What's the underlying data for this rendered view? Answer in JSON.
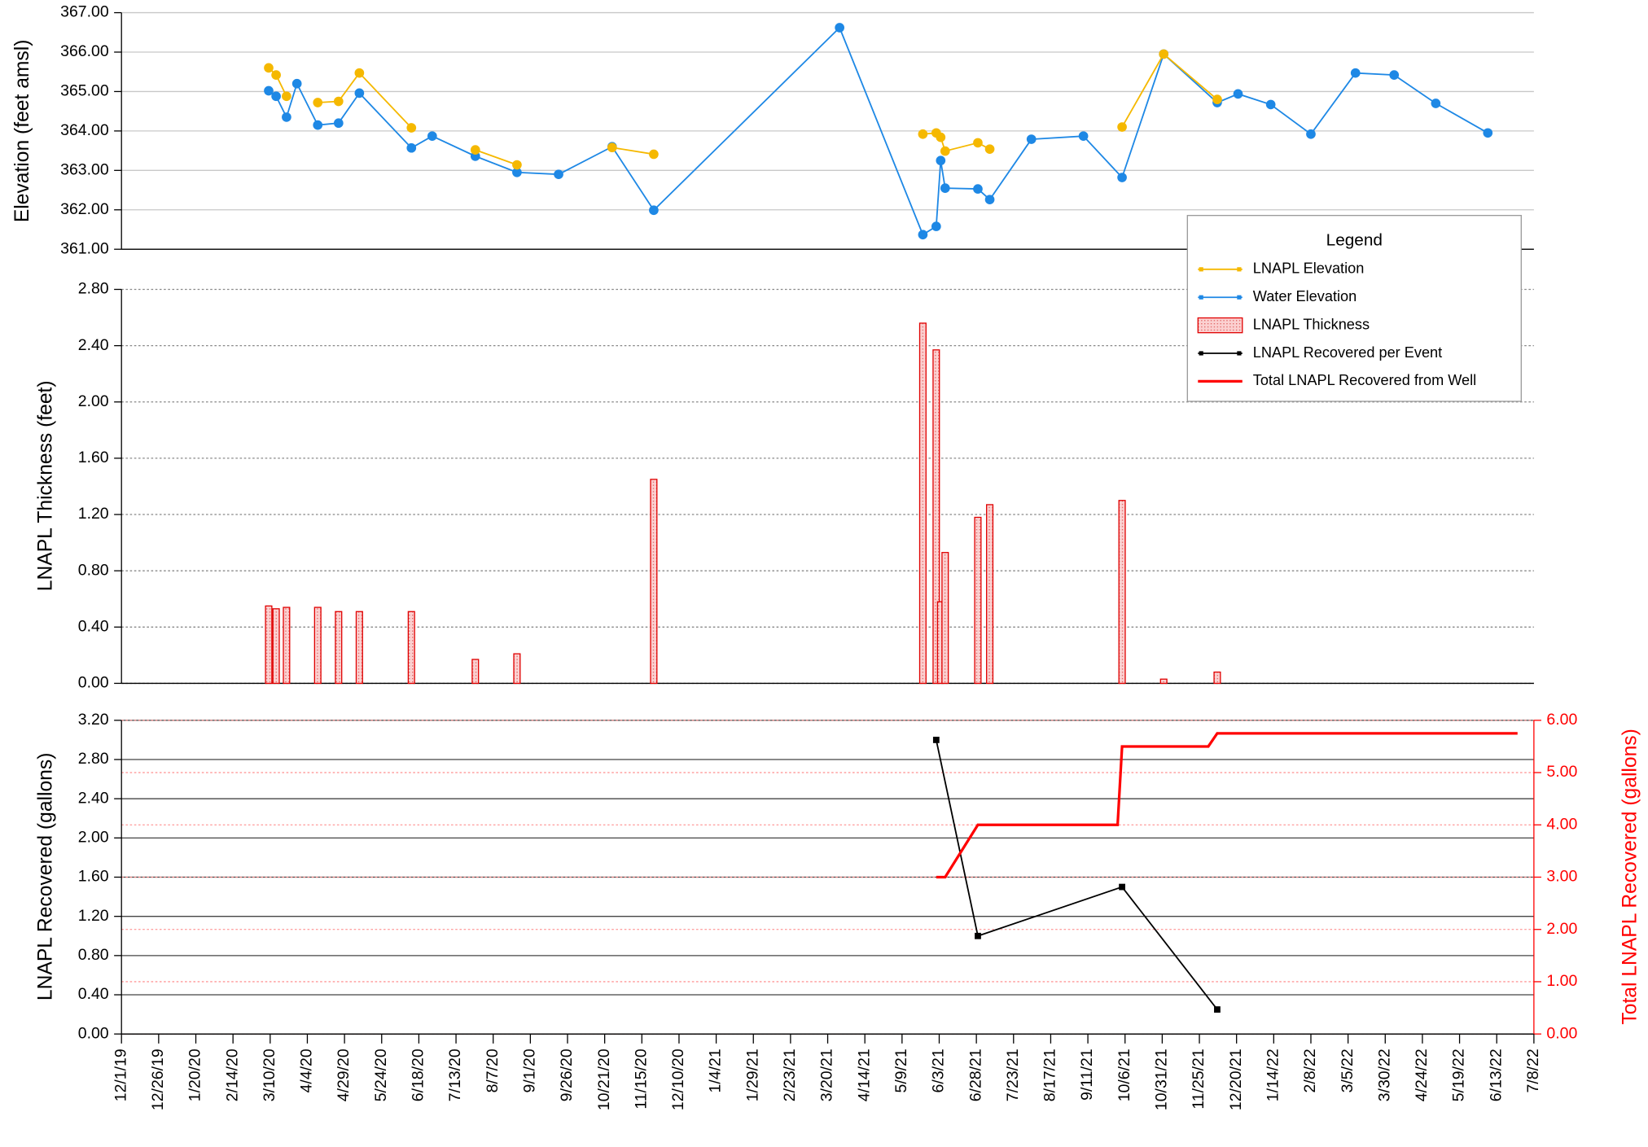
{
  "chart_data": [
    {
      "type": "line",
      "y_label": "Elevation (feet amsl)",
      "legend_title": "Legend",
      "legend": "upper right",
      "xlim": [
        "12/1/19",
        "7/8/22"
      ],
      "ylim": [
        361,
        367
      ],
      "yticks": [
        {
          "value": 361,
          "label": "361.00"
        },
        {
          "value": 362,
          "label": "362.00"
        },
        {
          "value": 363,
          "label": "363.00"
        },
        {
          "value": 364,
          "label": "364.00"
        },
        {
          "value": 365,
          "label": "365.00"
        },
        {
          "value": 366,
          "label": "366.00"
        },
        {
          "value": 367,
          "label": "367.00"
        }
      ],
      "grid": true,
      "grid_style": "solid",
      "x": [
        "3/9/20",
        "3/14/20",
        "3/21/20",
        "3/28/20",
        "4/11/20",
        "4/25/20",
        "5/9/20",
        "6/13/20",
        "6/27/20",
        "7/26/20",
        "8/23/20",
        "9/20/20",
        "10/26/20",
        "11/23/20",
        "3/28/21",
        "5/23/21",
        "6/1/21",
        "6/4/21",
        "6/7/21",
        "6/29/21",
        "7/7/21",
        "8/4/21",
        "9/8/21",
        "10/4/21",
        "11/1/21",
        "12/7/21",
        "12/21/21",
        "1/12/22",
        "2/8/22",
        "3/10/22",
        "4/5/22",
        "5/3/22",
        "6/7/22"
      ],
      "series": [
        {
          "name": "LNAPL Elevation",
          "color": "#f5b800",
          "values": [
            365.6,
            365.42,
            364.88,
            null,
            364.72,
            364.75,
            365.47,
            364.08,
            null,
            363.52,
            363.14,
            null,
            363.58,
            363.41,
            null,
            363.92,
            363.95,
            363.84,
            363.49,
            363.7,
            363.54,
            null,
            null,
            364.1,
            365.95,
            364.8,
            null,
            null,
            null,
            null,
            null,
            null,
            null
          ]
        },
        {
          "name": "Water Elevation",
          "color": "#1e88e5",
          "values": [
            365.02,
            364.88,
            364.35,
            365.2,
            364.15,
            364.2,
            364.96,
            363.57,
            363.87,
            363.36,
            362.95,
            362.9,
            363.6,
            361.99,
            366.62,
            361.37,
            361.58,
            363.25,
            362.55,
            362.53,
            362.26,
            363.79,
            363.87,
            362.82,
            365.95,
            364.72,
            364.94,
            364.67,
            363.92,
            365.47,
            365.42,
            364.7,
            363.95
          ]
        }
      ]
    },
    {
      "type": "bar",
      "y_label": "LNAPL Thickness (feet)",
      "xlim": [
        "12/1/19",
        "7/8/22"
      ],
      "ylim": [
        0,
        2.8
      ],
      "yticks": [
        {
          "value": 0,
          "label": "0.00"
        },
        {
          "value": 0.4,
          "label": "0.40"
        },
        {
          "value": 0.8,
          "label": "0.80"
        },
        {
          "value": 1.2,
          "label": "1.20"
        },
        {
          "value": 1.6,
          "label": "1.60"
        },
        {
          "value": 2,
          "label": "2.00"
        },
        {
          "value": 2.4,
          "label": "2.40"
        },
        {
          "value": 2.8,
          "label": "2.80"
        }
      ],
      "grid": true,
      "grid_style": "dotted",
      "x": [
        "3/9/20",
        "3/14/20",
        "3/21/20",
        "4/11/20",
        "4/25/20",
        "5/9/20",
        "6/13/20",
        "7/26/20",
        "8/23/20",
        "11/23/20",
        "5/23/21",
        "6/1/21",
        "6/4/21",
        "6/7/21",
        "6/29/21",
        "7/7/21",
        "10/4/21",
        "11/1/21",
        "12/7/21"
      ],
      "series": [
        {
          "name": "LNAPL Thickness",
          "color": "#e00000",
          "values": [
            0.55,
            0.53,
            0.54,
            0.54,
            0.51,
            0.51,
            0.51,
            0.17,
            0.21,
            1.45,
            2.56,
            2.37,
            0.58,
            0.93,
            1.18,
            1.27,
            1.3,
            0.03,
            0.08
          ]
        }
      ]
    },
    {
      "type": "line",
      "y_label": "LNAPL Recovered (gallons)",
      "y2_label": "Total LNAPL Recovered (gallons)",
      "xlim": [
        "12/1/19",
        "7/8/22"
      ],
      "ylim": [
        0,
        3.2
      ],
      "y2lim": [
        0,
        6
      ],
      "yticks": [
        {
          "value": 0,
          "label": "0.00"
        },
        {
          "value": 0.4,
          "label": "0.40"
        },
        {
          "value": 0.8,
          "label": "0.80"
        },
        {
          "value": 1.2,
          "label": "1.20"
        },
        {
          "value": 1.6,
          "label": "1.60"
        },
        {
          "value": 2,
          "label": "2.00"
        },
        {
          "value": 2.4,
          "label": "2.40"
        },
        {
          "value": 2.8,
          "label": "2.80"
        },
        {
          "value": 3.2,
          "label": "3.20"
        }
      ],
      "y2ticks": [
        {
          "value": 0,
          "label": "0.00"
        },
        {
          "value": 1,
          "label": "1.00"
        },
        {
          "value": 2,
          "label": "2.00"
        },
        {
          "value": 3,
          "label": "3.00"
        },
        {
          "value": 4,
          "label": "4.00"
        },
        {
          "value": 5,
          "label": "5.00"
        },
        {
          "value": 6,
          "label": "6.00"
        }
      ],
      "grid": true,
      "grid_style": "solid",
      "xticks": [
        "12/1/19",
        "12/26/19",
        "1/20/20",
        "2/14/20",
        "3/10/20",
        "4/4/20",
        "4/29/20",
        "5/24/20",
        "6/18/20",
        "7/13/20",
        "8/7/20",
        "9/1/20",
        "9/26/20",
        "10/21/20",
        "11/15/20",
        "12/10/20",
        "1/4/21",
        "1/29/21",
        "2/23/21",
        "3/20/21",
        "4/14/21",
        "5/9/21",
        "6/3/21",
        "6/28/21",
        "7/23/21",
        "8/17/21",
        "9/11/21",
        "10/6/21",
        "10/31/21",
        "11/25/21",
        "12/20/21",
        "1/14/22",
        "2/8/22",
        "3/5/22",
        "3/30/22",
        "4/24/22",
        "5/19/22",
        "6/13/22",
        "7/8/22"
      ],
      "series": [
        {
          "name": "LNAPL Recovered per Event",
          "color": "#000000",
          "x": [
            "6/1/21",
            "6/29/21",
            "10/4/21",
            "12/7/21"
          ],
          "values": [
            3.0,
            1.0,
            1.5,
            0.25
          ]
        },
        {
          "name": "Total LNAPL Recovered from Well",
          "color": "#ff0000",
          "axis": "y2",
          "x": [
            "6/1/21",
            "6/7/21",
            "6/29/21",
            "10/1/21",
            "10/4/21",
            "12/1/21",
            "12/7/21",
            "6/27/22"
          ],
          "values": [
            3,
            3,
            4,
            4,
            5.5,
            5.5,
            5.75,
            5.75
          ]
        }
      ]
    }
  ]
}
